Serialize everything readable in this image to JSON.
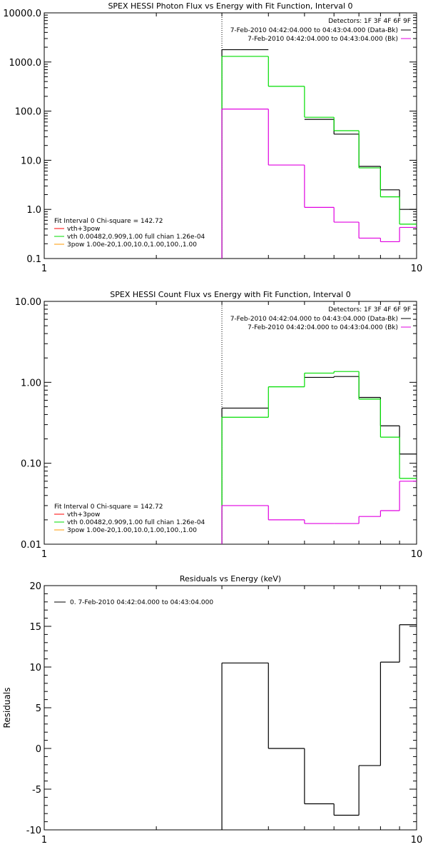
{
  "colors": {
    "axis": "#000000",
    "data": "#000000",
    "fit_total": "#ff0000",
    "fit_vth": "#00dd00",
    "fit_3pow": "#ff9900",
    "background": "#e000e0",
    "marker": "#000000"
  },
  "chart_data": [
    {
      "type": "line",
      "step": true,
      "title": "SPEX HESSI Photon Flux vs Energy with Fit Function, Interval 0",
      "xlabel": "",
      "ylabel": "",
      "xscale": "log",
      "yscale": "log",
      "xlim": [
        1,
        10
      ],
      "ylim": [
        0.1,
        10000
      ],
      "xticks": [
        1,
        10
      ],
      "xtick_labels": [
        "1",
        "10"
      ],
      "yticks": [
        0.1,
        1,
        10,
        100,
        1000,
        10000
      ],
      "ytick_labels": [
        "0.1",
        "1.0",
        "10.0",
        "100.0",
        "1000.0",
        "10000.0"
      ],
      "vline_x": 3,
      "bin_edges": [
        3,
        4,
        5,
        6,
        7,
        8,
        9,
        10
      ],
      "series": [
        {
          "name": "7-Feb-2010 04:42:04.000 to 04:43:04.000 (Data-Bk)",
          "color_key": "data",
          "values": [
            1780,
            null,
            68,
            34,
            7.5,
            2.5,
            1.0
          ]
        },
        {
          "name": "vth 0.00482,0.909,1.00  full chian 1.26e-04",
          "color_key": "fit_vth",
          "values": [
            1300,
            320,
            75,
            40,
            7.0,
            1.8,
            0.5
          ]
        },
        {
          "name": "7-Feb-2010 04:42:04.000 to 04:43:04.000 (Bk)",
          "color_key": "background",
          "values": [
            110,
            8.0,
            1.1,
            0.55,
            0.26,
            0.22,
            0.43
          ]
        }
      ],
      "legend": {
        "position": "top-right",
        "header": "Detectors: 1F 3F 4F 6F 9F",
        "entries": [
          {
            "label": "7-Feb-2010 04:42:04.000 to 04:43:04.000 (Data-Bk)",
            "color_key": "data"
          },
          {
            "label": "7-Feb-2010 04:42:04.000 to 04:43:04.000 (Bk)",
            "color_key": "background"
          }
        ]
      },
      "fit_legend": {
        "position": "bottom-left",
        "header": "Fit Interval 0    Chi-square = 142.72",
        "entries": [
          {
            "label": "vth+3pow",
            "color_key": "fit_total"
          },
          {
            "label": "vth 0.00482,0.909,1.00  full chian 1.26e-04",
            "color_key": "fit_vth"
          },
          {
            "label": "3pow 1.00e-20,1.00,10.0,1.00,100.,1.00",
            "color_key": "fit_3pow"
          }
        ]
      }
    },
    {
      "type": "line",
      "step": true,
      "title": "SPEX HESSI Count Flux vs Energy with Fit Function, Interval 0",
      "xlabel": "",
      "ylabel": "",
      "xscale": "log",
      "yscale": "log",
      "xlim": [
        1,
        10
      ],
      "ylim": [
        0.01,
        10
      ],
      "xticks": [
        1,
        10
      ],
      "xtick_labels": [
        "1",
        "10"
      ],
      "yticks": [
        0.01,
        0.1,
        1,
        10
      ],
      "ytick_labels": [
        "0.01",
        "0.10",
        "1.00",
        "10.00"
      ],
      "vline_x": 3,
      "bin_edges": [
        3,
        4,
        5,
        6,
        7,
        8,
        9,
        10
      ],
      "series": [
        {
          "name": "7-Feb-2010 04:42:04.000 to 04:43:04.000 (Data-Bk)",
          "color_key": "data",
          "values": [
            0.48,
            null,
            1.15,
            1.18,
            0.65,
            0.29,
            0.13
          ]
        },
        {
          "name": "vth 0.00482,0.909,1.00  full chian 1.26e-04",
          "color_key": "fit_vth",
          "values": [
            0.37,
            0.88,
            1.3,
            1.36,
            0.62,
            0.21,
            0.065
          ]
        },
        {
          "name": "7-Feb-2010 04:42:04.000 to 04:43:04.000 (Bk)",
          "color_key": "background",
          "values": [
            0.03,
            0.02,
            0.018,
            0.018,
            0.022,
            0.026,
            0.06
          ]
        }
      ],
      "legend": {
        "position": "top-right",
        "header": "Detectors: 1F 3F 4F 6F 9F",
        "entries": [
          {
            "label": "7-Feb-2010 04:42:04.000 to 04:43:04.000 (Data-Bk)",
            "color_key": "data"
          },
          {
            "label": "7-Feb-2010 04:42:04.000 to 04:43:04.000 (Bk)",
            "color_key": "background"
          }
        ]
      },
      "fit_legend": {
        "position": "bottom-left",
        "header": "Fit Interval 0    Chi-square = 142.72",
        "entries": [
          {
            "label": "vth+3pow",
            "color_key": "fit_total"
          },
          {
            "label": "vth 0.00482,0.909,1.00  full chian 1.26e-04",
            "color_key": "fit_vth"
          },
          {
            "label": "3pow 1.00e-20,1.00,10.0,1.00,100.,1.00",
            "color_key": "fit_3pow"
          }
        ]
      }
    },
    {
      "type": "line",
      "step": true,
      "title": "Residuals vs Energy (keV)",
      "xlabel": "",
      "ylabel": "Residuals",
      "xscale": "log",
      "yscale": "linear",
      "xlim": [
        1,
        10
      ],
      "ylim": [
        -10,
        20
      ],
      "xticks": [
        1,
        10
      ],
      "xtick_labels": [
        "1",
        "10"
      ],
      "yticks": [
        -10,
        -5,
        0,
        5,
        10,
        15,
        20
      ],
      "ytick_labels": [
        "-10",
        "-5",
        "0",
        "5",
        "10",
        "15",
        "20"
      ],
      "bin_edges": [
        3,
        4,
        5,
        6,
        7,
        8,
        9,
        10
      ],
      "series": [
        {
          "name": "0.  7-Feb-2010 04:42:04.000 to 04:43:04.000",
          "color_key": "data",
          "values": [
            10.5,
            0.0,
            -6.8,
            -8.2,
            -2.1,
            10.6,
            15.2
          ]
        }
      ],
      "legend": {
        "position": "top-left",
        "entries": [
          {
            "label": "0.  7-Feb-2010 04:42:04.000 to 04:43:04.000",
            "color_key": "data"
          }
        ]
      }
    }
  ]
}
